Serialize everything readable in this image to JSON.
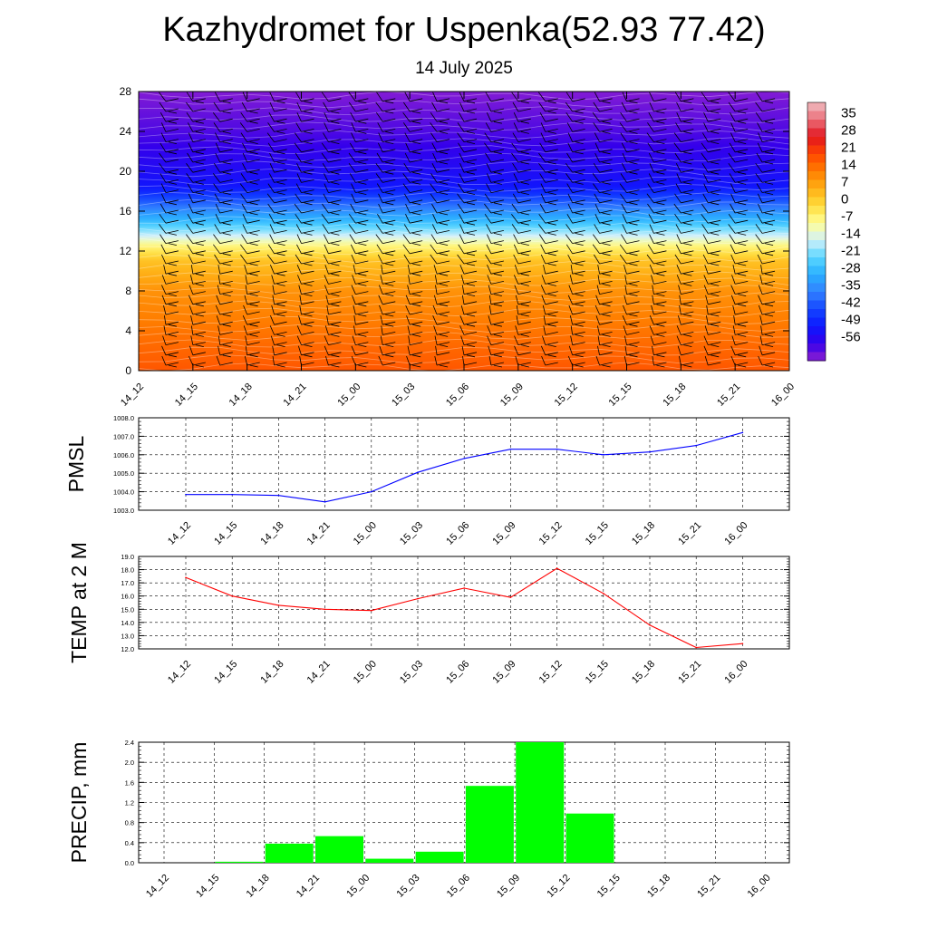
{
  "title": "Kazhydromet for Uspenka(52.93 77.42)",
  "subtitle": "14 July 2025",
  "colors": {
    "pmsl_line": "#0000ff",
    "temp_line": "#ff0000",
    "precip_bar": "#00ff00",
    "grid": "#000000"
  },
  "chart_data": [
    {
      "type": "heatmap",
      "x_ticks": [
        "14_12",
        "14_15",
        "14_18",
        "14_21",
        "15_00",
        "15_03",
        "15_06",
        "15_09",
        "15_12",
        "15_15",
        "15_18",
        "15_21",
        "16_00"
      ],
      "y_ticks": [
        "0",
        "4",
        "8",
        "12",
        "16",
        "20",
        "24",
        "28"
      ],
      "ylim": [
        0,
        28
      ],
      "colorbar_labels": [
        "35",
        "28",
        "21",
        "14",
        "7",
        "0",
        "-7",
        "-14",
        "-21",
        "-28",
        "-35",
        "-42",
        "-49",
        "-56"
      ],
      "colorbar_range": [
        -63,
        42
      ],
      "level_temperature_profile": [
        [
          0,
          19
        ],
        [
          4,
          15
        ],
        [
          8,
          11
        ],
        [
          11,
          4
        ],
        [
          12.5,
          -5
        ],
        [
          13.5,
          -14
        ],
        [
          15,
          -26
        ],
        [
          17,
          -40
        ],
        [
          18.5,
          -50
        ],
        [
          21,
          -54
        ],
        [
          24,
          -58
        ],
        [
          28,
          -62
        ]
      ],
      "overlay": "wind barbs"
    },
    {
      "type": "line",
      "ylabel": "PMSL",
      "x": [
        "14_12",
        "14_15",
        "14_18",
        "14_21",
        "15_00",
        "15_03",
        "15_06",
        "15_09",
        "15_12",
        "15_15",
        "15_18",
        "15_21",
        "16_00"
      ],
      "values": [
        1003.85,
        1003.85,
        1003.8,
        1003.45,
        1004.0,
        1005.05,
        1005.8,
        1006.3,
        1006.3,
        1006.0,
        1006.15,
        1006.5,
        1007.2
      ],
      "ylim": [
        1003.0,
        1008.0
      ],
      "y_ticks": [
        "1003.0",
        "1004.0",
        "1005.0",
        "1006.0",
        "1007.0",
        "1008.0"
      ],
      "grid": true
    },
    {
      "type": "line",
      "ylabel": "TEMP at 2 M",
      "x": [
        "14_12",
        "14_15",
        "14_18",
        "14_21",
        "15_00",
        "15_03",
        "15_06",
        "15_09",
        "15_12",
        "15_15",
        "15_18",
        "15_21",
        "16_00"
      ],
      "values": [
        17.4,
        16.0,
        15.3,
        15.0,
        14.9,
        15.8,
        16.6,
        15.9,
        18.1,
        16.2,
        13.8,
        12.1,
        12.4
      ],
      "ylim": [
        12.0,
        19.0
      ],
      "y_ticks": [
        "12.0",
        "13.0",
        "14.0",
        "15.0",
        "16.0",
        "17.0",
        "18.0",
        "19.0"
      ],
      "grid": true
    },
    {
      "type": "bar",
      "ylabel": "PRECIP, mm",
      "categories": [
        "14_12",
        "14_15",
        "14_18",
        "14_21",
        "15_00",
        "15_03",
        "15_06",
        "15_09",
        "15_12",
        "15_15",
        "15_18",
        "15_21",
        "16_00"
      ],
      "values": [
        0,
        0.02,
        0.38,
        0.53,
        0.08,
        0.22,
        1.53,
        2.4,
        0.98,
        0,
        0,
        0,
        0
      ],
      "ylim": [
        0,
        2.4
      ],
      "y_ticks": [
        "0.0",
        "0.4",
        "0.8",
        "1.2",
        "1.6",
        "2.0",
        "2.4"
      ],
      "grid": true
    }
  ]
}
